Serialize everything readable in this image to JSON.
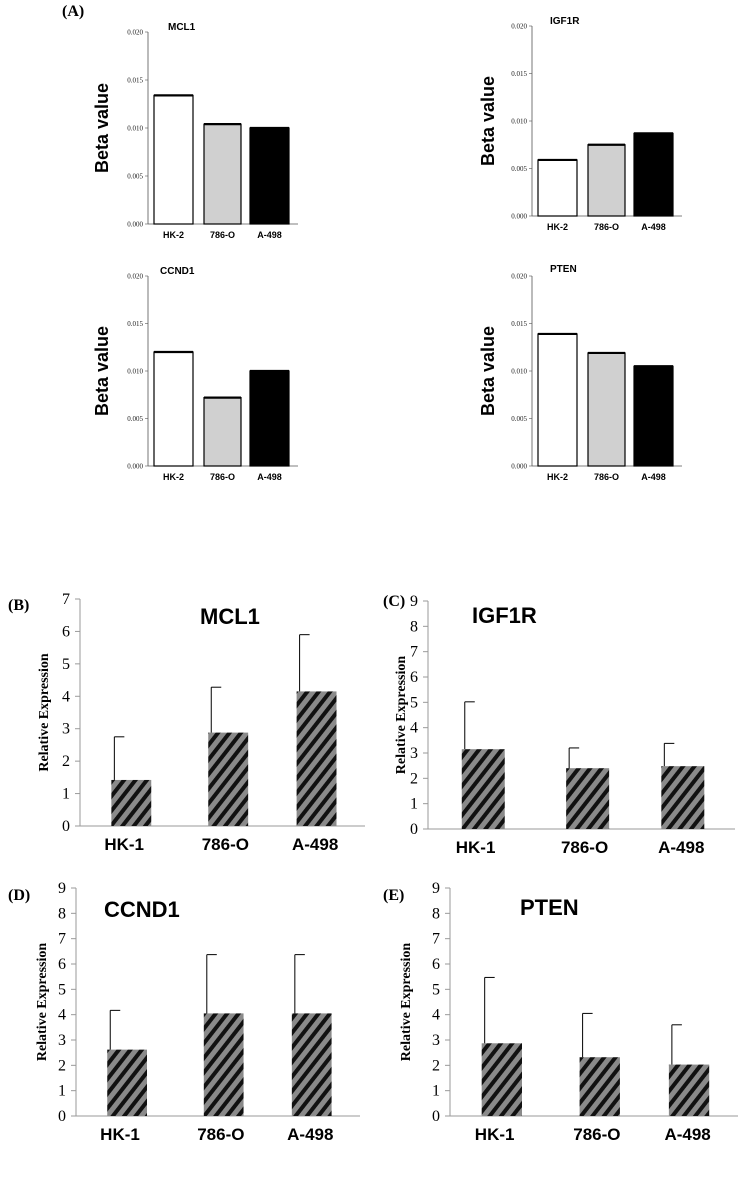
{
  "panel_labels": [
    "(A)",
    "(B)",
    "(C)",
    "(D)",
    "(E)"
  ],
  "chart_data": [
    {
      "panel": "(A)",
      "type": "bar",
      "title": "MCL1",
      "ylabel": "Beta value",
      "categories": [
        "HK-2",
        "786-O",
        "A-498"
      ],
      "values": [
        0.0134,
        0.0104,
        0.01
      ],
      "bar_colors": [
        "#ffffff",
        "#d0d0d0",
        "#000000"
      ],
      "ylim": [
        0,
        0.02
      ],
      "yticks": [
        "0.000",
        "0.005",
        "0.010",
        "0.015",
        "0.020"
      ]
    },
    {
      "panel": "(A)",
      "type": "bar",
      "title": "IGF1R",
      "ylabel": "Beta value",
      "categories": [
        "HK-2",
        "786-O",
        "A-498"
      ],
      "values": [
        0.0059,
        0.0075,
        0.0087
      ],
      "bar_colors": [
        "#ffffff",
        "#d0d0d0",
        "#000000"
      ],
      "ylim": [
        0,
        0.02
      ],
      "yticks": [
        "0.000",
        "0.005",
        "0.010",
        "0.015",
        "0.020"
      ]
    },
    {
      "panel": "(A)",
      "type": "bar",
      "title": "CCND1",
      "ylabel": "Beta value",
      "categories": [
        "HK-2",
        "786-O",
        "A-498"
      ],
      "values": [
        0.012,
        0.0072,
        0.01
      ],
      "bar_colors": [
        "#ffffff",
        "#d0d0d0",
        "#000000"
      ],
      "ylim": [
        0,
        0.02
      ],
      "yticks": [
        "0.000",
        "0.005",
        "0.010",
        "0.015",
        "0.020"
      ]
    },
    {
      "panel": "(A)",
      "type": "bar",
      "title": "PTEN",
      "ylabel": "Beta value",
      "categories": [
        "HK-2",
        "786-O",
        "A-498"
      ],
      "values": [
        0.0139,
        0.0119,
        0.0105
      ],
      "bar_colors": [
        "#ffffff",
        "#d0d0d0",
        "#000000"
      ],
      "ylim": [
        0,
        0.02
      ],
      "yticks": [
        "0.000",
        "0.005",
        "0.010",
        "0.015",
        "0.020"
      ]
    },
    {
      "panel": "(B)",
      "type": "bar",
      "title": "MCL1",
      "ylabel": "Relative Expression",
      "categories": [
        "HK-1",
        "786-O",
        "A-498"
      ],
      "values": [
        1.42,
        2.88,
        4.15
      ],
      "errors": [
        1.33,
        1.4,
        1.75
      ],
      "ylim": [
        0,
        7
      ],
      "yticks": [
        "0",
        "1",
        "2",
        "3",
        "4",
        "5",
        "6",
        "7"
      ]
    },
    {
      "panel": "(C)",
      "type": "bar",
      "title": "IGF1R",
      "ylabel": "Relative Expression",
      "categories": [
        "HK-1",
        "786-O",
        "A-498"
      ],
      "values": [
        3.15,
        2.4,
        2.48
      ],
      "errors": [
        1.87,
        0.8,
        0.9
      ],
      "ylim": [
        0,
        9
      ],
      "yticks": [
        "0",
        "1",
        "2",
        "3",
        "4",
        "5",
        "6",
        "7",
        "8",
        "9"
      ]
    },
    {
      "panel": "(D)",
      "type": "bar",
      "title": "CCND1",
      "ylabel": "Relative Expression",
      "categories": [
        "HK-1",
        "786-O",
        "A-498"
      ],
      "values": [
        2.62,
        4.05,
        4.05
      ],
      "errors": [
        1.55,
        2.32,
        2.32
      ],
      "ylim": [
        0,
        9
      ],
      "yticks": [
        "0",
        "1",
        "2",
        "3",
        "4",
        "5",
        "6",
        "7",
        "8",
        "9"
      ]
    },
    {
      "panel": "(E)",
      "type": "bar",
      "title": "PTEN",
      "ylabel": "Relative Expression",
      "categories": [
        "HK-1",
        "786-O",
        "A-498"
      ],
      "values": [
        2.87,
        2.32,
        2.03
      ],
      "errors": [
        2.6,
        1.73,
        1.57
      ],
      "ylim": [
        0,
        9
      ],
      "yticks": [
        "0",
        "1",
        "2",
        "3",
        "4",
        "5",
        "6",
        "7",
        "8",
        "9"
      ]
    }
  ]
}
